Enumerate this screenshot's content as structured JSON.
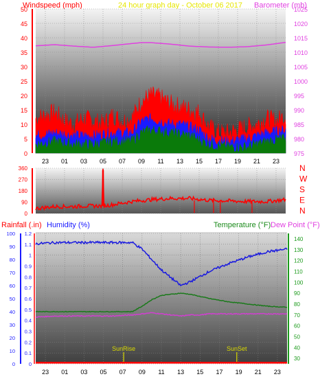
{
  "header": {
    "left_label": "Windspeed (mph)",
    "center_label": "24 hour graph day - October 06 2017",
    "right_label": "Barometer (mb)"
  },
  "colors": {
    "windspeed": "#ff0000",
    "wind_blue": "#1a1aff",
    "wind_green": "#0a7a0a",
    "barometer": "#e040e0",
    "header_center": "#e6e600",
    "direction": "#ff0000",
    "humidity": "#1a1adf",
    "temperature": "#1a7a1a",
    "dew_point": "#d040d0",
    "rainfall": "#ff0000",
    "axis_blue": "#1a1aff",
    "axis_green": "#1a9a1a",
    "sun_marker": "#dada00"
  },
  "x_axis": {
    "tick_labels": [
      "23",
      "01",
      "03",
      "05",
      "07",
      "09",
      "11",
      "13",
      "15",
      "17",
      "19",
      "21",
      "23"
    ]
  },
  "chart_data": [
    {
      "type": "line",
      "name": "wind_and_barometer",
      "y_left": {
        "label": "Windspeed (mph)",
        "ticks": [
          0,
          5,
          10,
          15,
          20,
          25,
          30,
          35,
          40,
          45,
          50
        ],
        "range": [
          0,
          50
        ]
      },
      "y_right": {
        "label": "Barometer (mb)",
        "ticks": [
          975,
          980,
          985,
          990,
          995,
          1000,
          1005,
          1010,
          1015,
          1020,
          1025
        ],
        "range": [
          975,
          1025
        ]
      },
      "x_range": [
        22,
        48
      ],
      "series": [
        {
          "key": "gust",
          "axis": "left",
          "x": [
            22,
            24,
            25,
            26,
            27,
            28,
            29,
            30,
            31,
            32,
            33,
            34,
            35,
            36,
            37,
            38,
            39,
            40,
            41,
            42,
            43,
            44,
            45,
            46,
            47,
            48
          ],
          "y": [
            12,
            14,
            11,
            10,
            12,
            11,
            10,
            13,
            11,
            12,
            18,
            20,
            19,
            17,
            16,
            15,
            14,
            9,
            7,
            7,
            8,
            9,
            10,
            12,
            11,
            13
          ]
        },
        {
          "key": "avg",
          "axis": "left",
          "x": [
            22,
            24,
            26,
            28,
            30,
            32,
            33,
            34,
            35,
            36,
            37,
            38,
            39,
            40,
            42,
            44,
            46,
            48
          ],
          "y": [
            6,
            7,
            6,
            6,
            7,
            7,
            11,
            12,
            11,
            10,
            10,
            9,
            8,
            5,
            4,
            5,
            7,
            8
          ]
        },
        {
          "key": "low",
          "axis": "left",
          "x": [
            22,
            24,
            26,
            28,
            30,
            32,
            33,
            34,
            36,
            38,
            40,
            42,
            44,
            46,
            48
          ],
          "y": [
            3,
            4,
            3,
            3,
            4,
            4,
            7,
            8,
            7,
            6,
            3,
            2,
            2,
            4,
            5
          ]
        },
        {
          "key": "barometer",
          "axis": "right",
          "x": [
            22,
            24,
            26,
            28,
            30,
            32,
            33,
            34,
            36,
            38,
            40,
            42,
            44,
            46,
            48
          ],
          "y": [
            1012.2,
            1012.6,
            1012.1,
            1011.7,
            1012.3,
            1013.0,
            1013.3,
            1013.3,
            1012.8,
            1012.1,
            1011.8,
            1011.7,
            1011.9,
            1012.5,
            1013.4
          ]
        }
      ]
    },
    {
      "type": "line",
      "name": "wind_direction",
      "y_ticks": [
        0,
        90,
        180,
        270,
        360
      ],
      "y_range": [
        0,
        360
      ],
      "compass_labels": [
        "N",
        "W",
        "S",
        "E",
        "N"
      ],
      "x_range": [
        22,
        48
      ],
      "series": [
        {
          "key": "direction",
          "x": [
            22,
            24,
            26,
            27,
            28,
            28.95,
            29.0,
            29.1,
            30,
            32,
            34,
            36,
            38,
            40,
            42,
            44,
            46,
            48
          ],
          "y": [
            40,
            55,
            55,
            60,
            60,
            60,
            345,
            60,
            70,
            95,
            110,
            120,
            120,
            105,
            100,
            95,
            95,
            110
          ]
        }
      ]
    },
    {
      "type": "line",
      "name": "rain_humidity_temperature",
      "y_rainfall": {
        "label": "Rainfall (.in)",
        "ticks": [
          0,
          0.1,
          0.2,
          0.3,
          0.4,
          0.5,
          0.6,
          0.7,
          0.8,
          0.9,
          1,
          1.1,
          1.2
        ],
        "range": [
          0,
          1.2
        ]
      },
      "y_humidity": {
        "label": "Humidity (%)",
        "ticks": [
          0,
          10,
          20,
          30,
          40,
          50,
          60,
          70,
          80,
          90,
          100
        ],
        "range": [
          0,
          100
        ]
      },
      "y_temperature": {
        "label": "Temperature (°F)",
        "label2": "Dew Point (°F)",
        "ticks": [
          30,
          40,
          50,
          60,
          70,
          80,
          90,
          100,
          110,
          120,
          130,
          140
        ],
        "range": [
          25,
          145
        ]
      },
      "x_range": [
        22,
        48
      ],
      "annotations": [
        {
          "label": "SunRise",
          "x": 31.1
        },
        {
          "label": "SunSet",
          "x": 42.8
        }
      ],
      "series": [
        {
          "key": "humidity",
          "axis": "humidity",
          "x": [
            22,
            24,
            26,
            28,
            30,
            32,
            33,
            34,
            35,
            36,
            37,
            38,
            39,
            40,
            41,
            42,
            44,
            46,
            48
          ],
          "y": [
            92,
            93,
            93,
            93,
            93,
            93,
            88,
            80,
            72,
            66,
            60,
            63,
            67,
            71,
            74,
            77,
            82,
            86,
            88
          ]
        },
        {
          "key": "temperature",
          "axis": "temperature",
          "x": [
            22,
            24,
            26,
            28,
            30,
            32,
            33,
            34,
            35,
            36,
            37,
            38,
            39,
            40,
            42,
            44,
            46,
            48
          ],
          "y": [
            73,
            73,
            73,
            73,
            73,
            73,
            78,
            84,
            88,
            89,
            90,
            89,
            87,
            85,
            82,
            80,
            78,
            77
          ]
        },
        {
          "key": "dew_point",
          "axis": "temperature",
          "x": [
            22,
            24,
            26,
            28,
            30,
            32,
            33,
            34,
            35,
            36,
            37,
            38,
            39,
            40,
            42,
            44,
            46,
            48
          ],
          "y": [
            68,
            69,
            69,
            69,
            69,
            70,
            71,
            72,
            71,
            70,
            69,
            70,
            70,
            71,
            71,
            71,
            71,
            71
          ]
        },
        {
          "key": "rainfall",
          "axis": "rainfall",
          "x": [
            22,
            48
          ],
          "y": [
            0.01,
            0.01
          ]
        }
      ]
    }
  ],
  "annotations_text": {
    "sunrise": "SunRise",
    "sunset": "SunSet"
  }
}
